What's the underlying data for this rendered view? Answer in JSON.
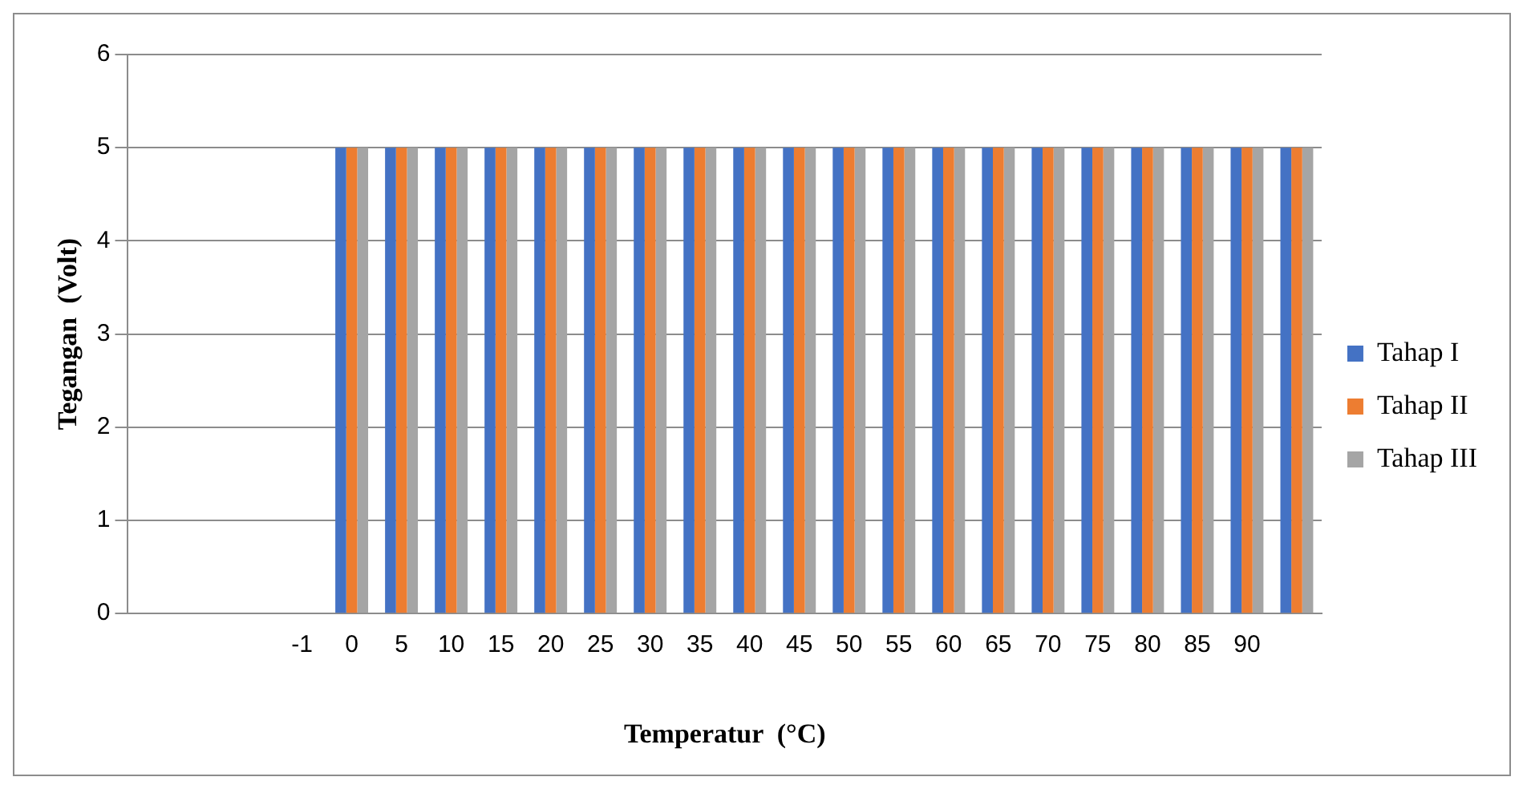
{
  "chart_data": {
    "type": "bar",
    "xlabel": "Temperatur  (°C)",
    "ylabel": "Tegangan  (Volt)",
    "categories": [
      null,
      null,
      null,
      "-1",
      "0",
      "5",
      "10",
      "15",
      "20",
      "25",
      "30",
      "35",
      "40",
      "45",
      "50",
      "55",
      "60",
      "65",
      "70",
      "75",
      "80",
      "85",
      "90",
      null
    ],
    "series": [
      {
        "name": "Tahap I",
        "color": "#4472c4",
        "values": [
          null,
          null,
          null,
          null,
          5,
          5,
          5,
          5,
          5,
          5,
          5,
          5,
          5,
          5,
          5,
          5,
          5,
          5,
          5,
          5,
          5,
          5,
          5,
          5
        ]
      },
      {
        "name": "Tahap II",
        "color": "#ed7d31",
        "values": [
          null,
          null,
          null,
          null,
          5,
          5,
          5,
          5,
          5,
          5,
          5,
          5,
          5,
          5,
          5,
          5,
          5,
          5,
          5,
          5,
          5,
          5,
          5,
          5
        ]
      },
      {
        "name": "Tahap III",
        "color": "#a5a5a5",
        "values": [
          null,
          null,
          null,
          null,
          5,
          5,
          5,
          5,
          5,
          5,
          5,
          5,
          5,
          5,
          5,
          5,
          5,
          5,
          5,
          5,
          5,
          5,
          5,
          5
        ]
      }
    ],
    "ylim": [
      0,
      6
    ],
    "yticks": [
      0,
      1,
      2,
      3,
      4,
      5,
      6
    ],
    "grid": "y",
    "legend": "right"
  }
}
